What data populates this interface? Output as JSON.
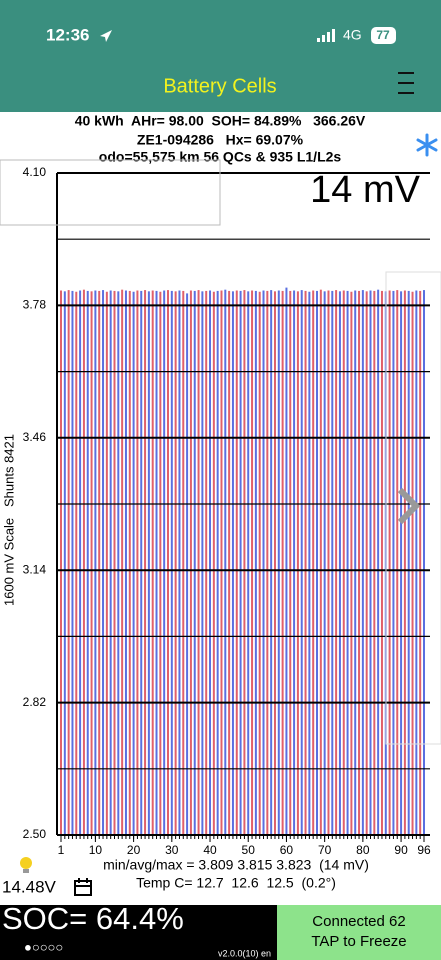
{
  "status_bar": {
    "time": "12:36",
    "network": "4G",
    "battery": "77"
  },
  "header": {
    "title": "Battery Cells"
  },
  "info": {
    "line1": "40 kWh  AHr= 98.00  SOH= 84.89%   366.26V",
    "line2": "ZE1-094286   Hx= 69.07%",
    "line3": "odo=55,575 km 56 QCs & 935 L1/L2s"
  },
  "chart_data": {
    "type": "bar",
    "ylabel": "1600 mV Scale   Shunts 8421",
    "spread_label": "14 mV",
    "x": [
      1,
      2,
      3,
      4,
      5,
      6,
      7,
      8,
      9,
      10,
      11,
      12,
      13,
      14,
      15,
      16,
      17,
      18,
      19,
      20,
      21,
      22,
      23,
      24,
      25,
      26,
      27,
      28,
      29,
      30,
      31,
      32,
      33,
      34,
      35,
      36,
      37,
      38,
      39,
      40,
      41,
      42,
      43,
      44,
      45,
      46,
      47,
      48,
      49,
      50,
      51,
      52,
      53,
      54,
      55,
      56,
      57,
      58,
      59,
      60,
      61,
      62,
      63,
      64,
      65,
      66,
      67,
      68,
      69,
      70,
      71,
      72,
      73,
      74,
      75,
      76,
      77,
      78,
      79,
      80,
      81,
      82,
      83,
      84,
      85,
      86,
      87,
      88,
      89,
      90,
      91,
      92,
      93,
      94,
      95,
      96
    ],
    "values": [
      3.816,
      3.814,
      3.817,
      3.815,
      3.813,
      3.816,
      3.818,
      3.815,
      3.814,
      3.816,
      3.815,
      3.817,
      3.813,
      3.816,
      3.815,
      3.814,
      3.818,
      3.816,
      3.815,
      3.813,
      3.816,
      3.815,
      3.817,
      3.814,
      3.816,
      3.815,
      3.813,
      3.816,
      3.817,
      3.815,
      3.814,
      3.816,
      3.815,
      3.809,
      3.816,
      3.815,
      3.817,
      3.814,
      3.815,
      3.816,
      3.813,
      3.815,
      3.816,
      3.818,
      3.815,
      3.814,
      3.816,
      3.815,
      3.817,
      3.814,
      3.816,
      3.815,
      3.813,
      3.816,
      3.815,
      3.817,
      3.814,
      3.816,
      3.815,
      3.823,
      3.815,
      3.816,
      3.814,
      3.817,
      3.815,
      3.813,
      3.816,
      3.815,
      3.818,
      3.814,
      3.816,
      3.815,
      3.817,
      3.814,
      3.816,
      3.815,
      3.813,
      3.816,
      3.815,
      3.817,
      3.814,
      3.816,
      3.815,
      3.818,
      3.815,
      3.814,
      3.816,
      3.815,
      3.817,
      3.814,
      3.816,
      3.815,
      3.813,
      3.816,
      3.815,
      3.817
    ],
    "colors": [
      "#e0606a",
      "#5a6fe0"
    ],
    "xlim": [
      1,
      96
    ],
    "xticks": [
      1,
      10,
      20,
      30,
      40,
      50,
      60,
      70,
      80,
      90,
      96
    ],
    "ylim": [
      2.5,
      4.1
    ],
    "yticks": [
      {
        "value": 2.5,
        "label": "2.50"
      },
      2.82,
      3.14,
      3.46,
      3.78,
      {
        "value": 4.1,
        "label": "4.10"
      }
    ],
    "yticks_minor": [
      2.66,
      2.98,
      3.3,
      3.62,
      3.94
    ],
    "grid": true
  },
  "stats": {
    "minavgmax": "min/avg/max = 3.809 3.815 3.823  (14 mV)",
    "temp": "Temp C= 12.7  12.6  12.5  (0.2°)",
    "voltage": "14.48V"
  },
  "footer": {
    "soc": "SOC= 64.4%",
    "dots": "●○○○○",
    "version": "v2.0.0(10) en",
    "connected": "Connected 62",
    "freeze": "TAP to Freeze"
  }
}
